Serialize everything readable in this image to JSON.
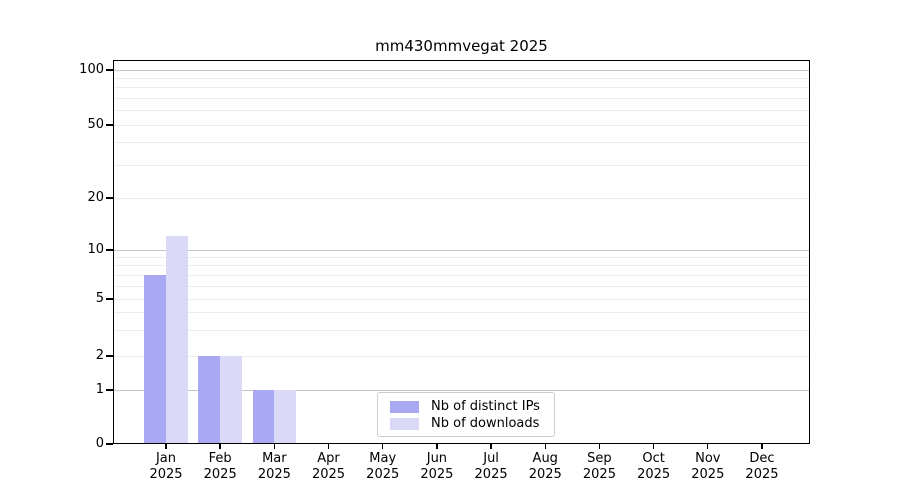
{
  "chart_data": {
    "type": "bar",
    "title": "mm430mmvegat 2025",
    "categories": [
      "Jan",
      "Feb",
      "Mar",
      "Apr",
      "May",
      "Jun",
      "Jul",
      "Aug",
      "Sep",
      "Oct",
      "Nov",
      "Dec"
    ],
    "category_year": "2025",
    "series": [
      {
        "name": "Nb of distinct IPs",
        "color": "#a9a9f3",
        "values": [
          7,
          2,
          1,
          0,
          0,
          0,
          0,
          0,
          0,
          0,
          0,
          0
        ]
      },
      {
        "name": "Nb of downloads",
        "color": "#dadaf8",
        "values": [
          12,
          2,
          1,
          0,
          0,
          0,
          0,
          0,
          0,
          0,
          0,
          0
        ]
      }
    ],
    "xlabel": "",
    "ylabel": "",
    "yaxis": {
      "scale": "symlog",
      "tick_labels": [
        0,
        1,
        2,
        5,
        10,
        20,
        50,
        100
      ],
      "ylim": [
        0,
        115
      ],
      "major_gridlines": [
        1,
        10,
        100
      ],
      "minor_gridlines": [
        2,
        3,
        4,
        5,
        6,
        7,
        8,
        9,
        20,
        30,
        40,
        50,
        60,
        70,
        80,
        90
      ]
    },
    "grid": true,
    "legend": {
      "position": "lower center"
    }
  },
  "colors": {
    "background": "#ffffff",
    "axis": "#000000",
    "major_grid": "#c6c6c6",
    "minor_grid": "#ededed",
    "series_distinct_ips": "#a9a9f3",
    "series_downloads": "#dadaf8"
  }
}
